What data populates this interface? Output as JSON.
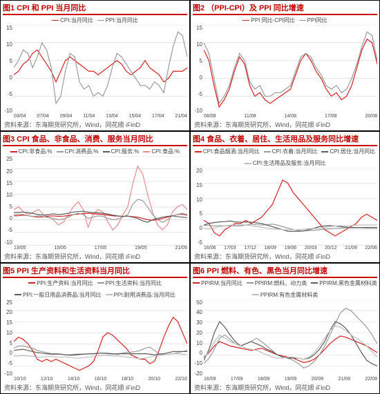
{
  "colors": {
    "accent": "#c00000",
    "red": "#d52020",
    "gray": "#9a9a9a",
    "darkgray": "#5c5c5c",
    "lightgray": "#bdbdbd",
    "grid": "#d6d6d6",
    "bg": "#ffffff",
    "text": "#444444"
  },
  "source_text": "资料来源：东海期货研究所，Wind，同花顺 iFinD",
  "title_fontsize": 11,
  "axis_fontsize": 8,
  "legend_fontsize": 8,
  "source_fontsize": 9,
  "panels": [
    {
      "id": "p1",
      "title": "图1  CPI 和 PPI 当月同比",
      "legend": [
        {
          "label": "CPI:当月同比",
          "color": "#d52020"
        },
        {
          "label": "PPI:当月同比",
          "color": "#9a9a9a"
        }
      ],
      "ylim": [
        -10,
        15
      ],
      "ytick_step": 5,
      "xticks": [
        "03/04",
        "07/04",
        "09/04",
        "11/04",
        "13/04",
        "15/04",
        "17/04",
        "21/04"
      ],
      "series": [
        {
          "color": "#d52020",
          "values": [
            1,
            2,
            4,
            5,
            7,
            8,
            6,
            4,
            2,
            -1,
            2,
            5,
            6,
            5,
            4,
            3,
            2,
            2,
            1,
            2,
            3,
            4,
            5,
            4,
            2,
            1,
            2,
            3,
            5,
            3,
            2,
            1,
            -1,
            0,
            2,
            2,
            2,
            3
          ]
        },
        {
          "color": "#9a9a9a",
          "values": [
            3,
            5,
            8,
            7,
            3,
            6,
            10,
            8,
            3,
            -7,
            -5,
            2,
            7,
            6,
            -1,
            -3,
            -2,
            -5,
            -4,
            -5,
            -2,
            3,
            7,
            6,
            4,
            2,
            0,
            -2,
            -2,
            -3,
            -1,
            -2,
            -4,
            3,
            9,
            13,
            12,
            6
          ]
        }
      ]
    },
    {
      "id": "p2",
      "title": "图2  （PPI-CPI）及 PPI 同比增速",
      "legend": [
        {
          "label": "PPI 同比-CPI同比",
          "color": "#d52020"
        },
        {
          "label": "PPI同比",
          "color": "#9a9a9a"
        }
      ],
      "ylim": [
        -10,
        15
      ],
      "ytick_step": 5,
      "xticks": [
        "08/08",
        "11/08",
        "14/08",
        "17/08",
        "20/08"
      ],
      "series": [
        {
          "color": "#d52020",
          "values": [
            8,
            5,
            -2,
            -8,
            -6,
            -3,
            2,
            6,
            4,
            -2,
            -5,
            -4,
            -6,
            -7,
            -6,
            -5,
            -4,
            -3,
            1,
            5,
            7,
            5,
            2,
            0,
            -3,
            -5,
            -4,
            -6,
            -5,
            -2,
            3,
            8,
            11,
            10,
            4
          ]
        },
        {
          "color": "#9a9a9a",
          "values": [
            10,
            7,
            0,
            -7,
            -5,
            -2,
            3,
            7,
            5,
            -1,
            -3,
            -2,
            -5,
            -5,
            -4,
            -4,
            -3,
            -2,
            2,
            6,
            7,
            6,
            3,
            1,
            -2,
            -3,
            -2,
            -4,
            -3,
            0,
            4,
            9,
            13,
            12,
            5
          ]
        }
      ]
    },
    {
      "id": "p3",
      "title": "图3  CPI 食品、非食品、消费、服务当月同比",
      "legend": [
        {
          "label": "CPI:非食品:%",
          "color": "#d52020"
        },
        {
          "label": "CPI:消费品:%",
          "color": "#9a9a9a"
        },
        {
          "label": "CPI:服务:%",
          "color": "#5c5c5c"
        },
        {
          "label": "CPI:食品:%",
          "color": "#e58b8b"
        }
      ],
      "ylim": [
        -10,
        25
      ],
      "ytick_step": 5,
      "xticks": [
        "13/05",
        "15/05",
        "17/05",
        "19/05",
        "21/05"
      ],
      "series": [
        {
          "color": "#e58b8b",
          "values": [
            4,
            5,
            3,
            2,
            3,
            4,
            2,
            1,
            0,
            -2,
            -1,
            2,
            5,
            7,
            4,
            -3,
            2,
            4,
            3,
            -1,
            -4,
            -2,
            2,
            5,
            14,
            21,
            18,
            10,
            3,
            -2,
            -4,
            -2,
            3,
            5,
            6,
            4
          ]
        },
        {
          "color": "#d52020",
          "values": [
            1.5,
            1.6,
            1.8,
            1.5,
            1.2,
            1,
            1.1,
            1.4,
            1.5,
            1.3,
            1.4,
            1.6,
            2,
            2.2,
            2.4,
            2.5,
            2.3,
            2.2,
            2,
            1.8,
            1.5,
            1.4,
            1.3,
            1.4,
            1.2,
            1,
            0.5,
            0,
            -0.2,
            0,
            0.5,
            1,
            1.5,
            2,
            2.2,
            1.8
          ]
        },
        {
          "color": "#9a9a9a",
          "values": [
            2,
            2.2,
            2,
            1.5,
            1.3,
            1.5,
            1.2,
            0.8,
            0.5,
            0,
            0.3,
            1,
            2,
            2.5,
            2,
            0.5,
            1,
            1.5,
            1.3,
            0.5,
            0,
            0.3,
            1,
            2,
            6,
            8,
            7.5,
            5,
            2,
            0,
            -1,
            0,
            1.5,
            2,
            2.5,
            2
          ]
        },
        {
          "color": "#5c5c5c",
          "values": [
            2.8,
            2.9,
            3,
            2.7,
            2.4,
            2,
            1.8,
            2,
            2.3,
            2,
            2.2,
            2.5,
            3,
            3.2,
            3.3,
            3,
            2.8,
            2.7,
            2.5,
            2.2,
            1.8,
            1.5,
            1.3,
            1.4,
            1,
            0.5,
            -0.5,
            -1,
            0,
            0.5,
            1,
            1.3,
            1.5,
            1.2,
            1,
            0.8
          ]
        }
      ]
    },
    {
      "id": "p4",
      "title": "图4  食品、衣着、居住、生活用品及服务同比增速",
      "legend": [
        {
          "label": "CPI:食品烟酒:当月同比",
          "color": "#d52020"
        },
        {
          "label": "CPI:衣着:当月同比",
          "color": "#9a9a9a"
        },
        {
          "label": "CPI:居住:当月同比",
          "color": "#5c5c5c"
        },
        {
          "label": "CPI:生活用品及服务:当月同比",
          "color": "#bdbdbd"
        }
      ],
      "ylim": [
        -5,
        20
      ],
      "ytick_step": 5,
      "xticks": [
        "16/06",
        "17/03",
        "17/12",
        "18/09",
        "19/06",
        "20/03",
        "20/12",
        "21/09",
        "22/06"
      ],
      "series": [
        {
          "color": "#d52020",
          "values": [
            3,
            2,
            -1,
            -2,
            0,
            1,
            2,
            2,
            3,
            2,
            3,
            4,
            6,
            8,
            12,
            16,
            15,
            12,
            10,
            8,
            6,
            4,
            2,
            0,
            -1,
            -2,
            -1,
            0,
            1,
            2,
            4,
            5,
            4,
            3
          ]
        },
        {
          "color": "#9a9a9a",
          "values": [
            1.4,
            1.3,
            1.2,
            1.3,
            1.2,
            1.3,
            1.2,
            1.2,
            1.5,
            1.8,
            1.6,
            1.5,
            1.6,
            1.8,
            1.5,
            1,
            0.5,
            0,
            -0.3,
            -0.4,
            -0.3,
            -0.2,
            0,
            0.2,
            0.3,
            0.4,
            0.5,
            0.6,
            0.6,
            0.6,
            0.6,
            0.5,
            0.5,
            0.5
          ]
        },
        {
          "color": "#5c5c5c",
          "values": [
            1.5,
            2,
            2.3,
            2.5,
            2.6,
            2.8,
            2.5,
            2.4,
            2.5,
            2.4,
            2.2,
            2,
            1.5,
            1,
            0.5,
            0,
            -0.5,
            -0.6,
            -0.5,
            -0.4,
            0,
            0.5,
            1,
            1.2,
            1.3,
            1.2,
            1,
            0.8,
            0.7,
            0.7,
            0.7,
            0.7,
            0.7,
            0.7
          ]
        },
        {
          "color": "#bdbdbd",
          "values": [
            0.5,
            0.3,
            0.5,
            1,
            1.2,
            1.5,
            1.5,
            1.6,
            1.5,
            1.3,
            1,
            0.8,
            0.5,
            0.3,
            0.2,
            0,
            -0.1,
            -0.1,
            0,
            0.2,
            0.3,
            0.4,
            0.5,
            0.7,
            1,
            1.2,
            1.3,
            1.2,
            1.3,
            1.5,
            1.5,
            1.5,
            1.5,
            1.5
          ]
        }
      ]
    },
    {
      "id": "p5",
      "title": "图5  PPI 生产资料和生活资料当月同比",
      "legend": [
        {
          "label": "PPI:生产资料:当月同比",
          "color": "#d52020"
        },
        {
          "label": "PPI:生活资料:当月同比",
          "color": "#9a9a9a"
        },
        {
          "label": "PPI:一般日用品消费品:当月同比",
          "color": "#5c5c5c"
        },
        {
          "label": "PPI:耐用消费品:当月同比",
          "color": "#bdbdbd"
        }
      ],
      "ylim": [
        -10,
        25
      ],
      "ytick_step": 5,
      "xticks": [
        "10/10",
        "12/10",
        "14/10",
        "16/10",
        "18/10",
        "20/10",
        "22/10"
      ],
      "series": [
        {
          "color": "#d52020",
          "values": [
            6,
            8,
            7,
            5,
            2,
            -2,
            -3,
            -2,
            -3,
            -2,
            -3,
            -4,
            -5,
            -6,
            -7,
            -6,
            -5,
            -3,
            2,
            8,
            10,
            9,
            7,
            5,
            3,
            0,
            -1,
            -2,
            -2,
            -4,
            -3,
            2,
            8,
            13,
            17,
            15,
            10,
            5
          ]
        },
        {
          "color": "#9a9a9a",
          "values": [
            3,
            4,
            4,
            3.5,
            3,
            2,
            1.5,
            1,
            0.5,
            0.5,
            0.3,
            0,
            -0.3,
            -0.3,
            0,
            0.3,
            0.5,
            0.5,
            0.7,
            0.7,
            0.5,
            0.3,
            0.5,
            0.7,
            1,
            1.2,
            1.5,
            2,
            3,
            3.5,
            2,
            0.5,
            0,
            0.3,
            0.5,
            1,
            1.5,
            2
          ]
        },
        {
          "color": "#5c5c5c",
          "values": [
            2,
            2.3,
            2.5,
            2,
            1.5,
            1,
            0.8,
            0.5,
            0.3,
            0.3,
            0.3,
            0,
            0,
            0.2,
            0.3,
            0.3,
            0.5,
            0.5,
            0.7,
            0.8,
            0.7,
            0.5,
            0.3,
            0.5,
            0.5,
            0.5,
            0.5,
            0.5,
            0.5,
            0.3,
            0,
            0.3,
            0.5,
            1,
            1.5,
            1.5,
            1.5,
            1.5
          ]
        },
        {
          "color": "#bdbdbd",
          "values": [
            -0.5,
            -0.5,
            -0.3,
            -0.5,
            -0.7,
            -1,
            -1,
            -0.8,
            -0.8,
            -1,
            -1,
            -1,
            -1.2,
            -1.5,
            -1.5,
            -1.2,
            -1,
            -0.8,
            -0.5,
            -0.3,
            -0.3,
            -0.5,
            -0.5,
            -0.8,
            -1,
            -1.2,
            -1.5,
            -1.8,
            -1.5,
            -1,
            -0.5,
            -0.3,
            0,
            0.3,
            0.5,
            0.5,
            0.3,
            0
          ]
        }
      ]
    },
    {
      "id": "p6",
      "title": "图6  PPI 燃料、有色、黑色当月同比增速",
      "legend": [
        {
          "label": "PPIRM:当月同比",
          "color": "#d52020"
        },
        {
          "label": "PPIRM:燃料、动力类",
          "color": "#9a9a9a"
        },
        {
          "label": "PPIRM:黑色金属材料类",
          "color": "#5c5c5c"
        },
        {
          "label": "PPIRM:有色金属材料类",
          "color": "#bdbdbd"
        }
      ],
      "ylim": [
        -20,
        50
      ],
      "ytick_step": 10,
      "xticks": [
        "16/09",
        "17/09",
        "18/09",
        "19/09",
        "20/09",
        "21/09",
        "22/09"
      ],
      "series": [
        {
          "color": "#d52020",
          "values": [
            -2,
            2,
            8,
            12,
            10,
            8,
            7,
            6,
            5,
            4,
            5,
            6,
            4,
            2,
            0,
            -1,
            -2,
            -3,
            -5,
            -7,
            -6,
            -4,
            0,
            5,
            10,
            14,
            17,
            16,
            14,
            12,
            10,
            8,
            5,
            2
          ]
        },
        {
          "color": "#9a9a9a",
          "values": [
            -8,
            -3,
            5,
            15,
            18,
            14,
            10,
            8,
            10,
            12,
            15,
            12,
            8,
            4,
            0,
            -2,
            -3,
            -5,
            -8,
            -12,
            -10,
            -6,
            0,
            8,
            18,
            28,
            38,
            42,
            40,
            35,
            30,
            25,
            18,
            10
          ]
        },
        {
          "color": "#5c5c5c",
          "values": [
            -5,
            5,
            20,
            30,
            25,
            18,
            12,
            8,
            10,
            12,
            10,
            8,
            5,
            3,
            0,
            -2,
            -3,
            -3,
            -3,
            -4,
            -3,
            0,
            5,
            12,
            22,
            30,
            28,
            24,
            18,
            10,
            2,
            -5,
            -8,
            -10
          ]
        },
        {
          "color": "#bdbdbd",
          "values": [
            -3,
            3,
            12,
            18,
            15,
            12,
            10,
            8,
            6,
            5,
            4,
            2,
            0,
            -2,
            -3,
            -3,
            -2,
            -2,
            -3,
            -4,
            -2,
            2,
            8,
            15,
            22,
            26,
            25,
            22,
            18,
            15,
            12,
            8,
            3,
            -2
          ]
        }
      ]
    }
  ]
}
